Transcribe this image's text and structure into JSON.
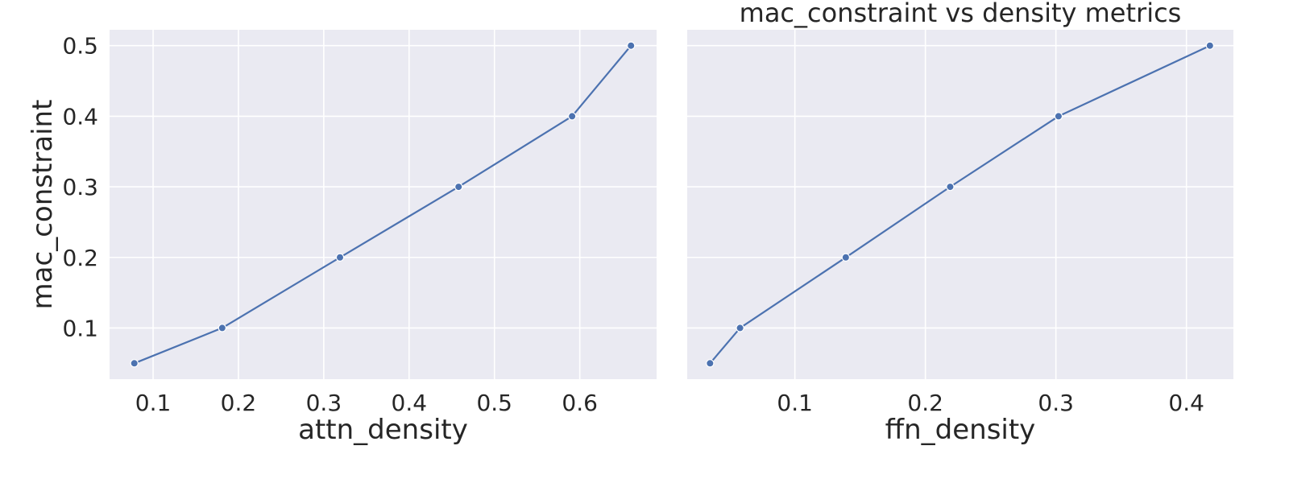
{
  "figure": {
    "background": "#ffffff",
    "axes_facecolor": "#eaeaf2",
    "grid_color": "#ffffff",
    "text_color": "#262626",
    "series_color": "#4c72b0"
  },
  "chart_data": [
    {
      "type": "line",
      "title": "",
      "xlabel": "attn_density",
      "ylabel": "mac_constraint",
      "x": [
        0.078,
        0.181,
        0.319,
        0.458,
        0.591,
        0.66
      ],
      "y": [
        0.05,
        0.1,
        0.2,
        0.3,
        0.4,
        0.5
      ],
      "xlim": [
        0.049,
        0.69
      ],
      "ylim": [
        0.0275,
        0.5225
      ],
      "xticks": [
        0.1,
        0.2,
        0.3,
        0.4,
        0.5,
        0.6
      ],
      "xtick_labels": [
        "0.1",
        "0.2",
        "0.3",
        "0.4",
        "0.5",
        "0.6"
      ],
      "yticks": [
        0.1,
        0.2,
        0.3,
        0.4,
        0.5
      ],
      "ytick_labels": [
        "0.1",
        "0.2",
        "0.3",
        "0.4",
        "0.5"
      ],
      "grid": true,
      "markers": true
    },
    {
      "type": "line",
      "title": "mac_constraint vs density metrics",
      "xlabel": "ffn_density",
      "ylabel": "",
      "x": [
        0.035,
        0.058,
        0.139,
        0.219,
        0.302,
        0.418
      ],
      "y": [
        0.05,
        0.1,
        0.2,
        0.3,
        0.4,
        0.5
      ],
      "xlim": [
        0.0175,
        0.436
      ],
      "ylim": [
        0.0275,
        0.5225
      ],
      "xticks": [
        0.1,
        0.2,
        0.3,
        0.4
      ],
      "xtick_labels": [
        "0.1",
        "0.2",
        "0.3",
        "0.4"
      ],
      "yticks": [
        0.1,
        0.2,
        0.3,
        0.4,
        0.5
      ],
      "ytick_labels": [],
      "grid": true,
      "markers": true
    }
  ]
}
